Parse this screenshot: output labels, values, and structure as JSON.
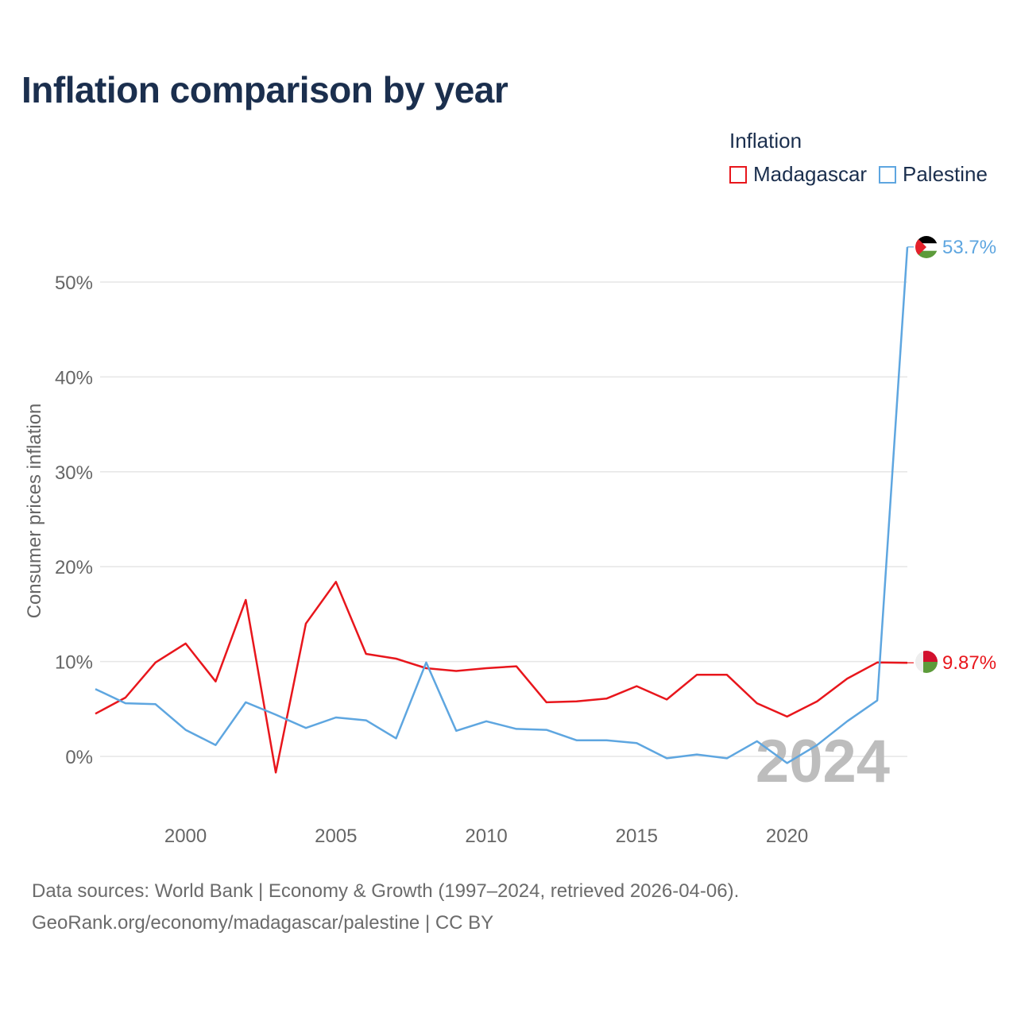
{
  "title": "Inflation comparison by year",
  "legend": {
    "title": "Inflation",
    "items": [
      {
        "name": "Madagascar",
        "color": "#e8161c"
      },
      {
        "name": "Palestine",
        "color": "#5ea6e0"
      }
    ]
  },
  "chart_data": {
    "type": "line",
    "title": "Inflation comparison by year",
    "xlabel": "",
    "ylabel": "Consumer prices inflation",
    "xlim": [
      1997,
      2024
    ],
    "ylim": [
      -6,
      57
    ],
    "xticks": [
      2000,
      2005,
      2010,
      2015,
      2020
    ],
    "yticks": [
      0,
      10,
      20,
      30,
      40,
      50
    ],
    "ytick_labels": [
      "0%",
      "10%",
      "20%",
      "30%",
      "40%",
      "50%"
    ],
    "x": [
      1997,
      1998,
      1999,
      2000,
      2001,
      2002,
      2003,
      2004,
      2005,
      2006,
      2007,
      2008,
      2009,
      2010,
      2011,
      2012,
      2013,
      2014,
      2015,
      2016,
      2017,
      2018,
      2019,
      2020,
      2021,
      2022,
      2023,
      2024
    ],
    "series": [
      {
        "name": "Madagascar",
        "color": "#e8161c",
        "values": [
          4.5,
          6.2,
          9.9,
          11.9,
          7.9,
          16.5,
          -1.7,
          14.0,
          18.4,
          10.8,
          10.3,
          9.3,
          9.0,
          9.3,
          9.5,
          5.7,
          5.8,
          6.1,
          7.4,
          6.0,
          8.6,
          8.6,
          5.6,
          4.2,
          5.8,
          8.2,
          9.9,
          9.87
        ],
        "end_label": "9.87%"
      },
      {
        "name": "Palestine",
        "color": "#5ea6e0",
        "values": [
          7.1,
          5.6,
          5.5,
          2.8,
          1.2,
          5.7,
          4.4,
          3.0,
          4.1,
          3.8,
          1.9,
          9.9,
          2.7,
          3.7,
          2.9,
          2.8,
          1.7,
          1.7,
          1.4,
          -0.2,
          0.2,
          -0.2,
          1.6,
          -0.7,
          1.2,
          3.7,
          5.9,
          53.7
        ],
        "end_label": "53.7%"
      }
    ],
    "watermark_year": "2024",
    "grid": true
  },
  "footer": {
    "sources": "Data sources: World Bank | Economy & Growth (1997–2024, retrieved 2026-04-06).",
    "credit": "GeoRank.org/economy/madagascar/palestine | CC BY"
  }
}
